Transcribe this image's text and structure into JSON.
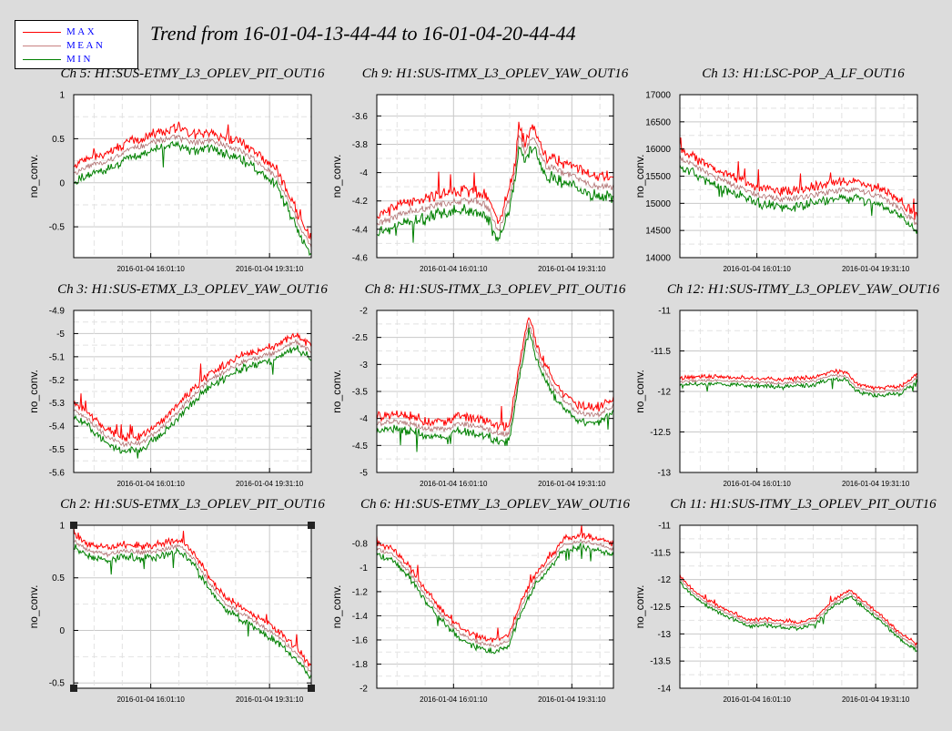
{
  "title": "Trend from 16-01-04-13-44-44 to 16-01-04-20-44-44",
  "legend": [
    {
      "label": "MAX",
      "color": "#ff0000"
    },
    {
      "label": "MEAN",
      "color": "#c88080"
    },
    {
      "label": "MIN",
      "color": "#008000"
    }
  ],
  "colors": {
    "max": "#ff0000",
    "mean": "#b07070",
    "min": "#008000",
    "grid": "#c8c8c8",
    "background": "#dcdcdc",
    "plot": "#ffffff"
  },
  "chart_data": [
    {
      "type": "line",
      "title": "Ch 5: H1:SUS-ETMY_L3_OPLEV_PIT_OUT16",
      "ylabel": "no_conv.",
      "ylim": [
        -0.85,
        1
      ],
      "yticks": [
        -0.5,
        0,
        0.5,
        1
      ],
      "xticks": [
        "2016-01-04 16:01:10",
        "2016-01-04 19:31:10"
      ],
      "xrange_hours": 7,
      "xtick_hours": [
        2.27,
        5.77
      ],
      "mean": [
        [
          0,
          0.1
        ],
        [
          0.5,
          0.2
        ],
        [
          1,
          0.25
        ],
        [
          1.5,
          0.35
        ],
        [
          2,
          0.42
        ],
        [
          2.5,
          0.48
        ],
        [
          3,
          0.52
        ],
        [
          3.5,
          0.45
        ],
        [
          4,
          0.48
        ],
        [
          4.5,
          0.42
        ],
        [
          5,
          0.35
        ],
        [
          5.5,
          0.22
        ],
        [
          6,
          0.05
        ],
        [
          6.5,
          -0.35
        ],
        [
          7,
          -0.75
        ]
      ],
      "spread": 0.08
    },
    {
      "type": "line",
      "title": "Ch 9: H1:SUS-ITMX_L3_OPLEV_YAW_OUT16",
      "ylabel": "no_conv.",
      "ylim": [
        -4.6,
        -3.45
      ],
      "yticks": [
        -4.6,
        -4.4,
        -4.2,
        -4,
        -3.8,
        -3.6
      ],
      "xticks": [
        "2016-01-04 16:01:10",
        "2016-01-04 19:31:10"
      ],
      "xrange_hours": 7,
      "xtick_hours": [
        2.27,
        5.77
      ],
      "mean": [
        [
          0,
          -4.37
        ],
        [
          0.5,
          -4.32
        ],
        [
          1,
          -4.27
        ],
        [
          1.5,
          -4.25
        ],
        [
          2,
          -4.22
        ],
        [
          2.5,
          -4.2
        ],
        [
          3,
          -4.2
        ],
        [
          3.3,
          -4.25
        ],
        [
          3.6,
          -4.42
        ],
        [
          3.9,
          -4.2
        ],
        [
          4.1,
          -4.0
        ],
        [
          4.2,
          -3.75
        ],
        [
          4.4,
          -3.85
        ],
        [
          4.6,
          -3.75
        ],
        [
          4.8,
          -3.85
        ],
        [
          5,
          -3.95
        ],
        [
          5.5,
          -4.0
        ],
        [
          6,
          -4.05
        ],
        [
          6.5,
          -4.1
        ],
        [
          7,
          -4.1
        ]
      ],
      "spread": 0.06
    },
    {
      "type": "line",
      "title": "Ch 13: H1:LSC-POP_A_LF_OUT16",
      "ylabel": "no_conv.",
      "ylim": [
        14000,
        17000
      ],
      "yticks": [
        14000,
        14500,
        15000,
        15500,
        16000,
        16500,
        17000
      ],
      "xticks": [
        "2016-01-04 16:01:10",
        "2016-01-04 19:31:10"
      ],
      "xrange_hours": 7,
      "xtick_hours": [
        2.27,
        5.77
      ],
      "mean": [
        [
          0,
          15850
        ],
        [
          0.5,
          15650
        ],
        [
          1,
          15500
        ],
        [
          1.5,
          15350
        ],
        [
          2,
          15220
        ],
        [
          2.5,
          15120
        ],
        [
          3,
          15080
        ],
        [
          3.5,
          15100
        ],
        [
          4,
          15150
        ],
        [
          4.5,
          15220
        ],
        [
          5,
          15250
        ],
        [
          5.5,
          15200
        ],
        [
          6,
          15100
        ],
        [
          6.5,
          14900
        ],
        [
          7,
          14600
        ]
      ],
      "spread": 130
    },
    {
      "type": "line",
      "title": "Ch 3: H1:SUS-ETMX_L3_OPLEV_YAW_OUT16",
      "ylabel": "no_conv.",
      "ylim": [
        -5.6,
        -4.9
      ],
      "yticks": [
        -5.6,
        -5.5,
        -5.4,
        -5.3,
        -5.2,
        -5.1,
        -5,
        -4.9
      ],
      "xticks": [
        "2016-01-04 16:01:10",
        "2016-01-04 19:31:10"
      ],
      "xrange_hours": 7,
      "xtick_hours": [
        2.27,
        5.77
      ],
      "mean": [
        [
          0,
          -5.33
        ],
        [
          0.5,
          -5.38
        ],
        [
          1,
          -5.45
        ],
        [
          1.5,
          -5.48
        ],
        [
          2,
          -5.47
        ],
        [
          2.5,
          -5.42
        ],
        [
          3,
          -5.35
        ],
        [
          3.5,
          -5.27
        ],
        [
          4,
          -5.2
        ],
        [
          4.5,
          -5.16
        ],
        [
          5,
          -5.12
        ],
        [
          5.5,
          -5.1
        ],
        [
          6,
          -5.08
        ],
        [
          6.5,
          -5.03
        ],
        [
          7,
          -5.08
        ]
      ],
      "spread": 0.025
    },
    {
      "type": "line",
      "title": "Ch 8: H1:SUS-ITMX_L3_OPLEV_PIT_OUT16",
      "ylabel": "no_conv.",
      "ylim": [
        -5,
        -2
      ],
      "yticks": [
        -5,
        -4.5,
        -4,
        -3.5,
        -3,
        -2.5,
        -2
      ],
      "xticks": [
        "2016-01-04 16:01:10",
        "2016-01-04 19:31:10"
      ],
      "xrange_hours": 7,
      "xtick_hours": [
        2.27,
        5.77
      ],
      "mean": [
        [
          0,
          -4.1
        ],
        [
          0.5,
          -4.05
        ],
        [
          1,
          -4.1
        ],
        [
          1.5,
          -4.2
        ],
        [
          2,
          -4.2
        ],
        [
          2.5,
          -4.1
        ],
        [
          3,
          -4.15
        ],
        [
          3.5,
          -4.25
        ],
        [
          3.9,
          -4.3
        ],
        [
          4.1,
          -3.6
        ],
        [
          4.3,
          -2.8
        ],
        [
          4.5,
          -2.25
        ],
        [
          4.8,
          -2.9
        ],
        [
          5.2,
          -3.4
        ],
        [
          5.6,
          -3.7
        ],
        [
          6,
          -3.9
        ],
        [
          6.5,
          -3.95
        ],
        [
          7,
          -3.75
        ]
      ],
      "spread": 0.12
    },
    {
      "type": "line",
      "title": "Ch 12: H1:SUS-ITMY_L3_OPLEV_YAW_OUT16",
      "ylabel": "no_conv.",
      "ylim": [
        -13,
        -11
      ],
      "yticks": [
        -13,
        -12.5,
        -12,
        -11.5,
        -11
      ],
      "xticks": [
        "2016-01-04 16:01:10",
        "2016-01-04 19:31:10"
      ],
      "xrange_hours": 7,
      "xtick_hours": [
        2.27,
        5.77
      ],
      "mean": [
        [
          0,
          -11.88
        ],
        [
          1,
          -11.86
        ],
        [
          2,
          -11.88
        ],
        [
          3,
          -11.9
        ],
        [
          4,
          -11.87
        ],
        [
          4.5,
          -11.8
        ],
        [
          4.9,
          -11.82
        ],
        [
          5.2,
          -11.95
        ],
        [
          5.6,
          -12.0
        ],
        [
          6,
          -12.0
        ],
        [
          6.5,
          -11.98
        ],
        [
          7,
          -11.82
        ]
      ],
      "spread": 0.04
    },
    {
      "type": "line",
      "title": "Ch 2: H1:SUS-ETMX_L3_OPLEV_PIT_OUT16",
      "ylabel": "no_conv.",
      "ylim": [
        -0.55,
        1
      ],
      "yticks": [
        -0.5,
        0,
        0.5,
        1
      ],
      "xticks": [
        "2016-01-04 16:01:10",
        "2016-01-04 19:31:10"
      ],
      "xrange_hours": 7,
      "xtick_hours": [
        2.27,
        5.77
      ],
      "mean": [
        [
          0,
          0.85
        ],
        [
          0.5,
          0.75
        ],
        [
          1,
          0.72
        ],
        [
          1.5,
          0.76
        ],
        [
          2,
          0.74
        ],
        [
          2.5,
          0.76
        ],
        [
          3,
          0.8
        ],
        [
          3.2,
          0.8
        ],
        [
          3.6,
          0.65
        ],
        [
          4,
          0.45
        ],
        [
          4.5,
          0.25
        ],
        [
          5,
          0.15
        ],
        [
          5.5,
          0.05
        ],
        [
          6,
          -0.05
        ],
        [
          6.5,
          -0.2
        ],
        [
          7,
          -0.4
        ]
      ],
      "spread": 0.05
    },
    {
      "type": "line",
      "title": "Ch 6: H1:SUS-ETMY_L3_OPLEV_YAW_OUT16",
      "ylabel": "no_conv.",
      "ylim": [
        -2,
        -0.65
      ],
      "yticks": [
        -2,
        -1.8,
        -1.6,
        -1.4,
        -1.2,
        -1,
        -0.8
      ],
      "xticks": [
        "2016-01-04 16:01:10",
        "2016-01-04 19:31:10"
      ],
      "xrange_hours": 7,
      "xtick_hours": [
        2.27,
        5.77
      ],
      "mean": [
        [
          0,
          -0.85
        ],
        [
          0.5,
          -0.9
        ],
        [
          1,
          -1.05
        ],
        [
          1.5,
          -1.25
        ],
        [
          2,
          -1.42
        ],
        [
          2.5,
          -1.55
        ],
        [
          3,
          -1.62
        ],
        [
          3.5,
          -1.65
        ],
        [
          3.9,
          -1.6
        ],
        [
          4.3,
          -1.3
        ],
        [
          4.7,
          -1.1
        ],
        [
          5,
          -1.0
        ],
        [
          5.5,
          -0.82
        ],
        [
          6,
          -0.78
        ],
        [
          6.5,
          -0.8
        ],
        [
          7,
          -0.85
        ]
      ],
      "spread": 0.04
    },
    {
      "type": "line",
      "title": "Ch 11: H1:SUS-ITMY_L3_OPLEV_PIT_OUT16",
      "ylabel": "no_conv.",
      "ylim": [
        -14,
        -11
      ],
      "yticks": [
        -14,
        -13.5,
        -13,
        -12.5,
        -12,
        -11.5,
        -11
      ],
      "xticks": [
        "2016-01-04 16:01:10",
        "2016-01-04 19:31:10"
      ],
      "xrange_hours": 7,
      "xtick_hours": [
        2.27,
        5.77
      ],
      "mean": [
        [
          0,
          -12.0
        ],
        [
          0.5,
          -12.3
        ],
        [
          1,
          -12.5
        ],
        [
          1.5,
          -12.65
        ],
        [
          2,
          -12.8
        ],
        [
          2.5,
          -12.78
        ],
        [
          3,
          -12.82
        ],
        [
          3.5,
          -12.85
        ],
        [
          4,
          -12.75
        ],
        [
          4.5,
          -12.45
        ],
        [
          5,
          -12.25
        ],
        [
          5.5,
          -12.5
        ],
        [
          6,
          -12.75
        ],
        [
          6.5,
          -13.05
        ],
        [
          7,
          -13.25
        ]
      ],
      "spread": 0.05
    }
  ]
}
